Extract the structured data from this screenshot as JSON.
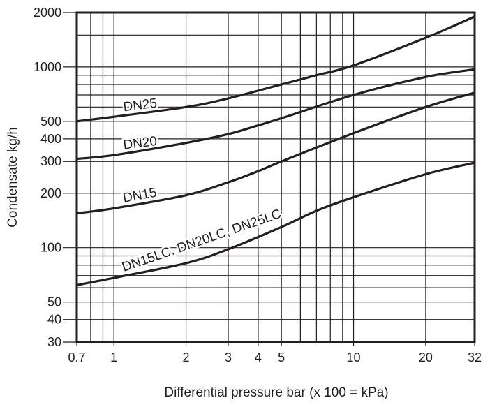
{
  "chart_data": {
    "type": "line",
    "title": "",
    "xlabel": "Differential pressure bar (x 100 = kPa)",
    "ylabel": "Condensate kg/h",
    "xscale": "log",
    "yscale": "log",
    "xlim": [
      0.7,
      32
    ],
    "ylim": [
      30,
      2000
    ],
    "grid": true,
    "x_ticks": [
      0.7,
      1,
      2,
      3,
      4,
      5,
      10,
      20,
      32
    ],
    "x_tick_labels": [
      "0.7",
      "1",
      "2",
      "3",
      "4",
      "5",
      "10",
      "20",
      "32"
    ],
    "x_grid": [
      0.7,
      0.8,
      0.9,
      1,
      2,
      3,
      4,
      5,
      6,
      7,
      8,
      9,
      10,
      20,
      32
    ],
    "y_ticks": [
      30,
      40,
      50,
      100,
      200,
      300,
      400,
      500,
      1000,
      2000
    ],
    "y_tick_labels": [
      "30",
      "40",
      "50",
      "100",
      "200",
      "300",
      "400",
      "500",
      "1000",
      "2000"
    ],
    "y_grid": [
      30,
      40,
      50,
      60,
      70,
      80,
      90,
      100,
      200,
      300,
      400,
      500,
      600,
      700,
      800,
      900,
      1000,
      1500,
      2000
    ],
    "series": [
      {
        "name": "DN25",
        "x": [
          0.7,
          1,
          2,
          3,
          5,
          7,
          10,
          20,
          32
        ],
        "y": [
          500,
          530,
          600,
          670,
          800,
          900,
          1020,
          1450,
          1900
        ]
      },
      {
        "name": "DN20",
        "x": [
          0.7,
          1,
          2,
          3,
          4,
          5,
          10,
          20,
          32
        ],
        "y": [
          310,
          325,
          380,
          425,
          475,
          520,
          700,
          880,
          970
        ]
      },
      {
        "name": "DN15",
        "x": [
          0.7,
          1,
          2,
          3,
          4,
          5,
          10,
          20,
          32
        ],
        "y": [
          155,
          165,
          195,
          230,
          265,
          300,
          430,
          600,
          720
        ]
      },
      {
        "name": "DN15LC, DN20LC, DN25LC",
        "x": [
          0.7,
          1,
          2,
          3,
          5,
          7,
          10,
          20,
          32
        ],
        "y": [
          62,
          68,
          82,
          98,
          130,
          160,
          190,
          255,
          295
        ]
      }
    ],
    "line_color": "#231f20"
  }
}
